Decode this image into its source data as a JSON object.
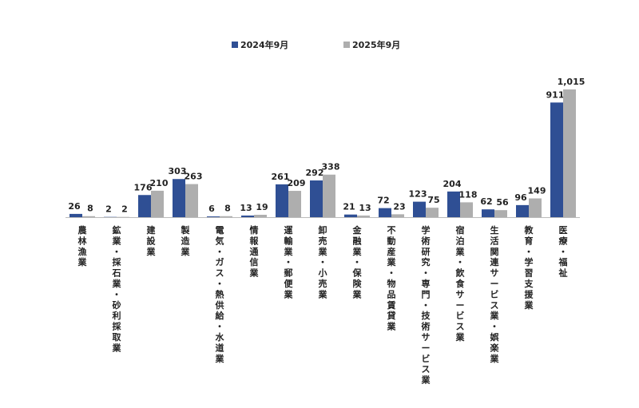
{
  "chart_data": {
    "type": "bar",
    "categories": [
      "農林漁業",
      "鉱業・採石業・砂利採取業",
      "建設業",
      "製造業",
      "電気・ガス・熱供給・水道業",
      "情報通信業",
      "運輸業・郵便業",
      "卸売業・小売業",
      "金融業・保険業",
      "不動産業・物品賃貸業",
      "学術研究・専門・技術サービス業",
      "宿泊業・飲食サービス業",
      "生活関連サービス業・娯楽業",
      "教育・学習支援業",
      "医療・福祉"
    ],
    "series": [
      {
        "name": "2024年9月",
        "color": "#2F4F94",
        "values": [
          26,
          2,
          176,
          303,
          6,
          13,
          261,
          292,
          21,
          72,
          123,
          204,
          62,
          96,
          911
        ],
        "labels": [
          "26",
          "2",
          "176",
          "303",
          "6",
          "13",
          "261",
          "292",
          "21",
          "72",
          "123",
          "204",
          "62",
          "96",
          "911"
        ]
      },
      {
        "name": "2025年9月",
        "color": "#AEAEAE",
        "values": [
          8,
          2,
          210,
          263,
          8,
          19,
          209,
          338,
          13,
          23,
          75,
          118,
          56,
          149,
          1015
        ],
        "labels": [
          "8",
          "2",
          "210",
          "263",
          "8",
          "19",
          "209",
          "338",
          "13",
          "23",
          "75",
          "118",
          "56",
          "149",
          "1,015"
        ]
      }
    ],
    "ylim": [
      0,
      1015
    ],
    "grid": false,
    "legend_position": "top-center"
  }
}
